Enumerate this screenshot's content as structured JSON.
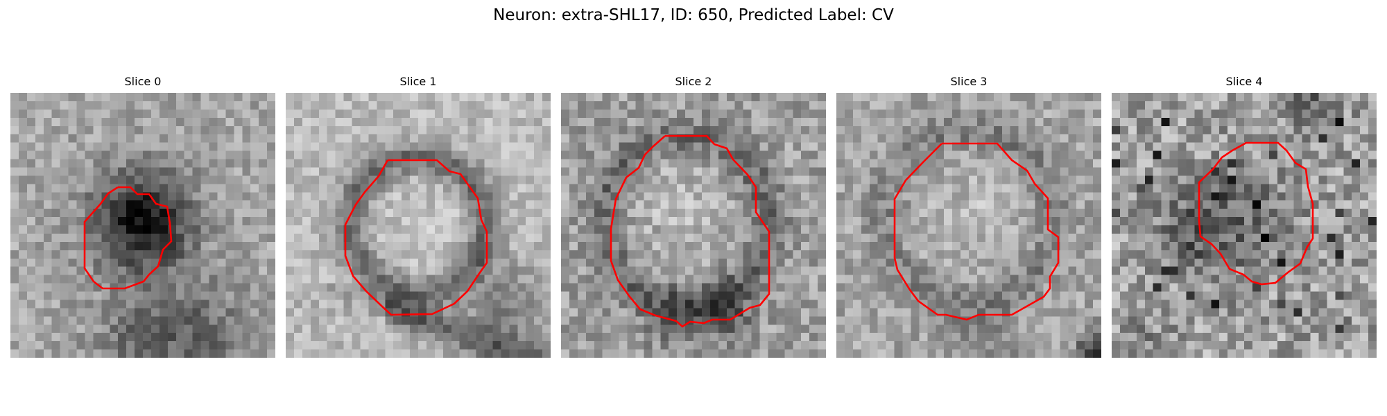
{
  "figure": {
    "suptitle": "Neuron: extra-SHL17, ID: 650, Predicted Label: CV"
  },
  "colors": {
    "background": "#ffffff",
    "contour": "#ff0000",
    "colormap": "gray"
  },
  "image_grid": {
    "rows": 32,
    "cols": 32
  },
  "slices": [
    {
      "title": "Slice 0",
      "contour_color": "#ff0000",
      "shading": "dark roughly circular blob left of center; lighter noisy background; darker band near the bottom"
    },
    {
      "title": "Slice 1",
      "contour_color": "#ff0000",
      "shading": "light circular interior surrounded by a dark ring; dark diagonal band in the lower right"
    },
    {
      "title": "Slice 2",
      "contour_color": "#ff0000",
      "shading": "large lighter circular region with dark membrane; dark patches along the lower edge"
    },
    {
      "title": "Slice 3",
      "contour_color": "#ff0000",
      "shading": "large lighter circular region with faint dark ring; dark corner at bottom right"
    },
    {
      "title": "Slice 4",
      "contour_color": "#ff0000",
      "shading": "small darker mottled region in the center; high-contrast noise with black speckles"
    }
  ]
}
